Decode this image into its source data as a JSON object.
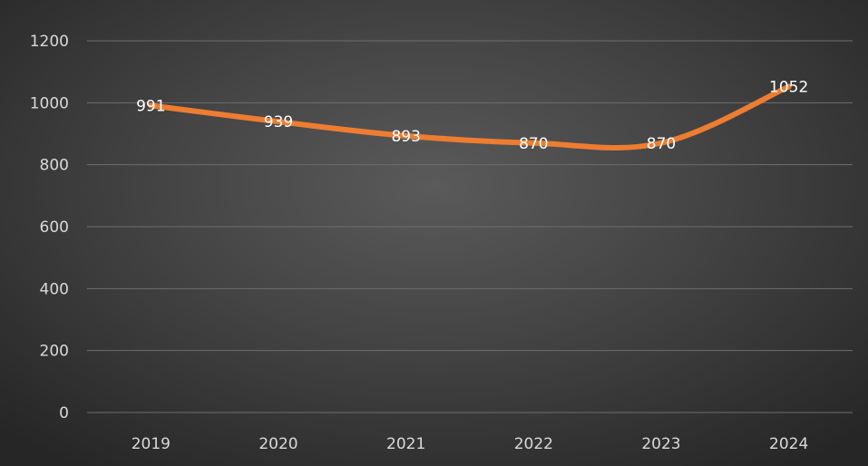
{
  "chart_data": {
    "type": "line",
    "categories": [
      "2019",
      "2020",
      "2021",
      "2022",
      "2023",
      "2024"
    ],
    "series": [
      {
        "values": [
          991,
          939,
          893,
          870,
          870,
          1052
        ],
        "color": "#ed7d31"
      }
    ],
    "ylim": [
      0,
      1200
    ],
    "yticks": [
      0,
      200,
      400,
      600,
      800,
      1000,
      1200
    ],
    "ytick_labels": [
      "0",
      "200",
      "400",
      "600",
      "800",
      "1000",
      "1200"
    ],
    "data_labels": [
      "991",
      "939",
      "893",
      "870",
      "870",
      "1052"
    ],
    "grid": true,
    "legend": "none",
    "title": "",
    "xlabel": "",
    "ylabel": ""
  }
}
